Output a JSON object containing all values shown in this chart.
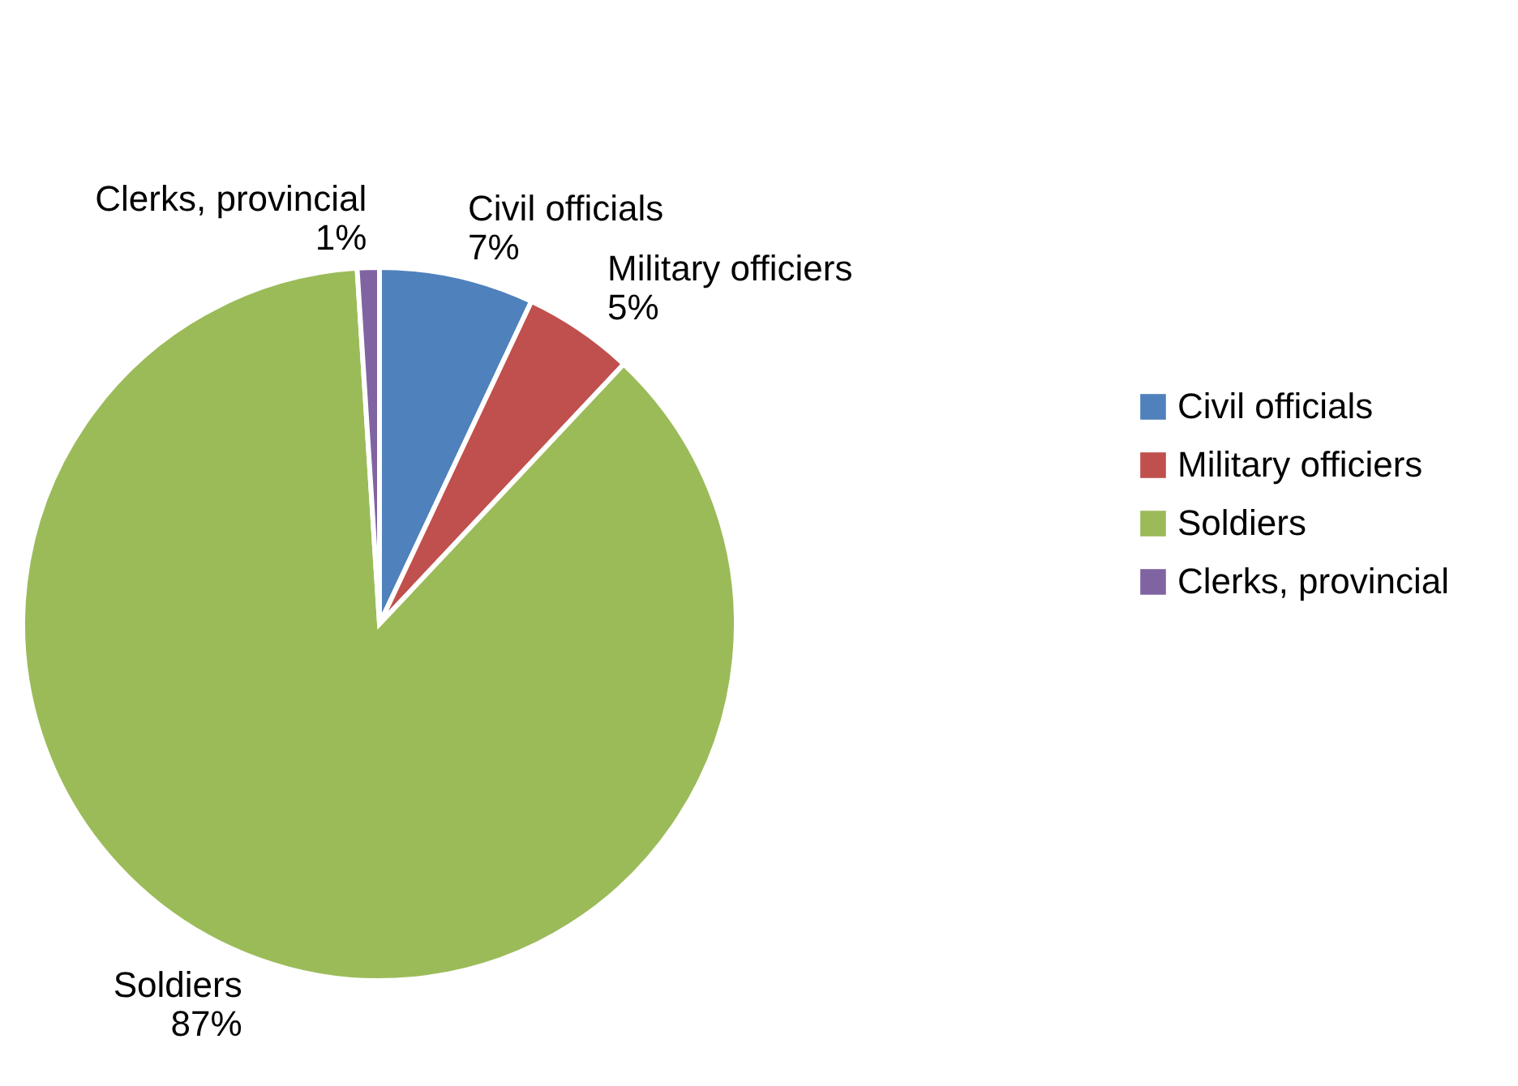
{
  "chart_data": {
    "type": "pie",
    "categories": [
      "Civil officials",
      "Military officiers",
      "Soldiers",
      "Clerks, provincial"
    ],
    "values": [
      7,
      5,
      87,
      1
    ],
    "value_labels": [
      "7%",
      "5%",
      "87%",
      "1%"
    ],
    "colors": [
      "#4f81bd",
      "#c0504d",
      "#9bbb59",
      "#8064a2"
    ],
    "legend": "right"
  }
}
